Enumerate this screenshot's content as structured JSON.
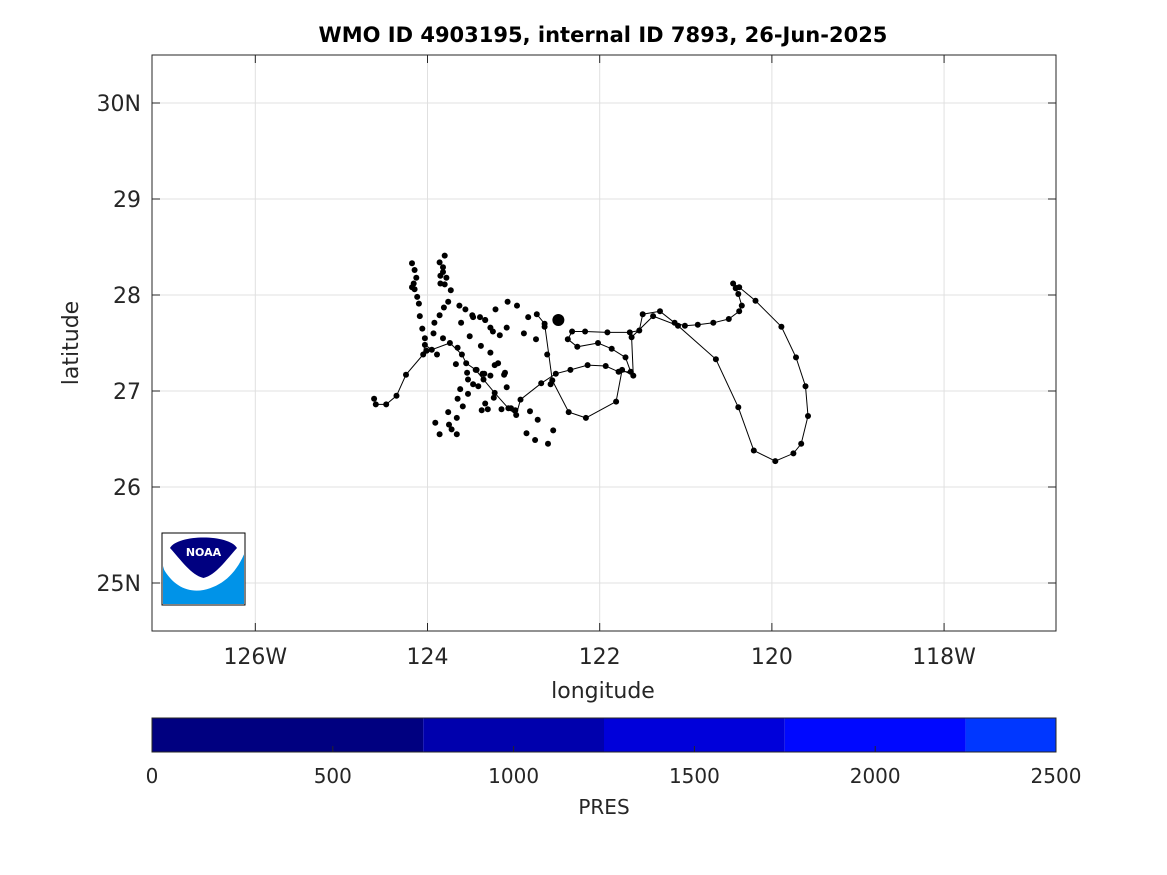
{
  "chart_data": {
    "type": "scatter",
    "title": "WMO ID 4903195, internal ID 7893, 26-Jun-2025",
    "xlabel": "longitude",
    "ylabel": "latitude",
    "xlim": [
      -127.2,
      -116.7
    ],
    "ylim": [
      24.5,
      30.5
    ],
    "grid": true,
    "x_ticks": [
      {
        "value": -126,
        "label": "126W"
      },
      {
        "value": -124,
        "label": "124"
      },
      {
        "value": -122,
        "label": "122"
      },
      {
        "value": -120,
        "label": "120"
      },
      {
        "value": -118,
        "label": "118W"
      }
    ],
    "y_ticks": [
      {
        "value": 25,
        "label": "25N"
      },
      {
        "value": 26,
        "label": "26"
      },
      {
        "value": 27,
        "label": "27"
      },
      {
        "value": 28,
        "label": "28"
      },
      {
        "value": 29,
        "label": "29"
      },
      {
        "value": 30,
        "label": "30N"
      }
    ],
    "series": [
      {
        "marker_color": "#000000",
        "line_color": "#000000",
        "points": [
          [
            -122.48,
            27.74
          ],
          [
            -122.64,
            27.67
          ],
          [
            -122.83,
            27.77
          ],
          [
            -122.96,
            27.89
          ],
          [
            -123.07,
            27.93
          ],
          [
            -123.21,
            27.85
          ],
          [
            -123.33,
            27.74
          ],
          [
            -123.48,
            27.79
          ],
          [
            -123.61,
            27.71
          ],
          [
            -123.51,
            27.57
          ],
          [
            -123.38,
            27.47
          ],
          [
            -123.27,
            27.4
          ],
          [
            -123.18,
            27.29
          ],
          [
            -123.27,
            27.16
          ],
          [
            -123.41,
            27.05
          ],
          [
            -123.53,
            26.97
          ],
          [
            -123.59,
            26.84
          ],
          [
            -123.66,
            26.72
          ],
          [
            -123.72,
            26.6
          ],
          [
            -123.66,
            26.55
          ],
          [
            -123.75,
            26.65
          ],
          [
            -123.86,
            26.55
          ],
          [
            -123.91,
            26.67
          ],
          [
            -123.76,
            26.78
          ],
          [
            -123.65,
            26.92
          ],
          [
            -123.62,
            27.02
          ],
          [
            -123.53,
            27.12
          ],
          [
            -123.67,
            27.28
          ],
          [
            -123.89,
            27.38
          ],
          [
            -124.01,
            27.42
          ],
          [
            -124.03,
            27.55
          ],
          [
            -123.93,
            27.6
          ],
          [
            -123.92,
            27.71
          ],
          [
            -123.86,
            27.79
          ],
          [
            -123.81,
            27.87
          ],
          [
            -123.76,
            27.93
          ],
          [
            -123.73,
            28.05
          ],
          [
            -123.78,
            28.18
          ],
          [
            -123.82,
            28.29
          ],
          [
            -123.86,
            28.34
          ],
          [
            -123.8,
            28.41
          ],
          [
            -123.82,
            28.24
          ],
          [
            -123.85,
            28.2
          ],
          [
            -123.85,
            28.12
          ],
          [
            -123.8,
            28.11
          ],
          [
            -123.63,
            27.89
          ],
          [
            -123.56,
            27.85
          ],
          [
            -123.47,
            27.77
          ],
          [
            -123.39,
            27.77
          ],
          [
            -123.33,
            27.74
          ],
          [
            -123.27,
            27.66
          ],
          [
            -123.24,
            27.62
          ],
          [
            -123.16,
            27.58
          ],
          [
            -123.08,
            27.66
          ],
          [
            -122.88,
            27.6
          ],
          [
            -122.74,
            27.54
          ],
          [
            -122.61,
            27.38
          ],
          [
            -122.57,
            27.07
          ],
          [
            -122.72,
            26.7
          ],
          [
            -122.85,
            26.56
          ],
          [
            -122.75,
            26.49
          ],
          [
            -122.6,
            26.45
          ],
          [
            -122.54,
            26.59
          ],
          [
            -122.81,
            26.79
          ],
          [
            -122.98,
            26.8
          ],
          [
            -123.03,
            26.82
          ],
          [
            -123.14,
            26.81
          ],
          [
            -123.3,
            26.81
          ],
          [
            -123.37,
            26.8
          ],
          [
            -123.33,
            26.87
          ],
          [
            -123.23,
            26.93
          ],
          [
            -123.08,
            27.04
          ],
          [
            -123.11,
            27.17
          ],
          [
            -123.1,
            27.19
          ],
          [
            -123.22,
            27.27
          ],
          [
            -123.36,
            27.18
          ],
          [
            -123.34,
            27.18
          ],
          [
            -123.43,
            27.22
          ],
          [
            -123.47,
            27.07
          ],
          [
            -123.54,
            27.19
          ],
          [
            -123.65,
            27.45
          ],
          [
            -123.82,
            27.55
          ],
          [
            -124.06,
            27.65
          ],
          [
            -124.09,
            27.78
          ],
          [
            -124.1,
            27.91
          ],
          [
            -124.12,
            27.98
          ],
          [
            -124.15,
            28.06
          ],
          [
            -124.18,
            28.08
          ],
          [
            -124.13,
            28.18
          ],
          [
            -124.15,
            28.26
          ],
          [
            -124.18,
            28.33
          ],
          [
            -124.16,
            28.12
          ]
        ],
        "path": [
          [
            -124.62,
            26.92
          ],
          [
            -124.6,
            26.86
          ],
          [
            -124.48,
            26.86
          ],
          [
            -124.36,
            26.95
          ],
          [
            -124.25,
            27.17
          ],
          [
            -124.05,
            27.38
          ],
          [
            -124.03,
            27.48
          ],
          [
            -123.95,
            27.43
          ],
          [
            -123.74,
            27.5
          ],
          [
            -123.6,
            27.38
          ],
          [
            -123.55,
            27.29
          ],
          [
            -123.44,
            27.22
          ],
          [
            -123.35,
            27.12
          ],
          [
            -123.22,
            26.98
          ],
          [
            -123.06,
            26.82
          ],
          [
            -122.97,
            26.75
          ],
          [
            -122.92,
            26.91
          ],
          [
            -122.68,
            27.08
          ],
          [
            -122.51,
            27.18
          ],
          [
            -122.34,
            27.22
          ],
          [
            -122.14,
            27.27
          ],
          [
            -121.93,
            27.26
          ],
          [
            -121.78,
            27.2
          ],
          [
            -121.64,
            27.2
          ],
          [
            -121.7,
            27.35
          ],
          [
            -121.86,
            27.44
          ],
          [
            -122.02,
            27.5
          ],
          [
            -122.26,
            27.46
          ],
          [
            -122.37,
            27.54
          ],
          [
            -122.32,
            27.62
          ],
          [
            -122.17,
            27.62
          ],
          [
            -121.91,
            27.61
          ],
          [
            -121.65,
            27.61
          ],
          [
            -121.54,
            27.63
          ],
          [
            -121.5,
            27.8
          ],
          [
            -121.3,
            27.83
          ],
          [
            -121.13,
            27.71
          ],
          [
            -121.01,
            27.68
          ],
          [
            -120.86,
            27.69
          ],
          [
            -120.68,
            27.71
          ],
          [
            -120.5,
            27.75
          ],
          [
            -120.38,
            27.83
          ],
          [
            -120.35,
            27.89
          ],
          [
            -120.39,
            28.01
          ],
          [
            -120.42,
            28.07
          ],
          [
            -120.45,
            28.12
          ],
          [
            -120.38,
            28.08
          ],
          [
            -120.19,
            27.94
          ],
          [
            -119.89,
            27.67
          ],
          [
            -119.72,
            27.35
          ],
          [
            -119.61,
            27.05
          ],
          [
            -119.58,
            26.74
          ],
          [
            -119.66,
            26.45
          ],
          [
            -119.75,
            26.35
          ],
          [
            -119.96,
            26.27
          ],
          [
            -120.21,
            26.38
          ],
          [
            -120.39,
            26.83
          ],
          [
            -120.65,
            27.33
          ],
          [
            -121.09,
            27.68
          ],
          [
            -121.38,
            27.78
          ],
          [
            -121.63,
            27.56
          ],
          [
            -121.61,
            27.16
          ],
          [
            -121.74,
            27.22
          ],
          [
            -121.81,
            26.89
          ],
          [
            -122.16,
            26.72
          ],
          [
            -122.36,
            26.78
          ],
          [
            -122.55,
            27.11
          ],
          [
            -122.64,
            27.7
          ],
          [
            -122.73,
            27.8
          ]
        ]
      }
    ],
    "current_position": {
      "x": -122.48,
      "y": 27.74
    },
    "colorbar": {
      "label": "PRES",
      "lim": [
        0,
        2500
      ],
      "ticks": [
        {
          "value": 0,
          "label": "0"
        },
        {
          "value": 500,
          "label": "500"
        },
        {
          "value": 1000,
          "label": "1000"
        },
        {
          "value": 1500,
          "label": "1500"
        },
        {
          "value": 2000,
          "label": "2000"
        },
        {
          "value": 2500,
          "label": "2500"
        }
      ],
      "bands": [
        {
          "from": 0,
          "to": 750,
          "color": "#000080"
        },
        {
          "from": 750,
          "to": 1250,
          "color": "#0000AD"
        },
        {
          "from": 1250,
          "to": 1750,
          "color": "#0000DA"
        },
        {
          "from": 1750,
          "to": 2250,
          "color": "#0008FF"
        },
        {
          "from": 2250,
          "to": 2500,
          "color": "#0037FF"
        }
      ]
    },
    "logo": {
      "text": "NOAA",
      "colors": {
        "dark": "#000080",
        "light": "#0093E8"
      }
    }
  }
}
